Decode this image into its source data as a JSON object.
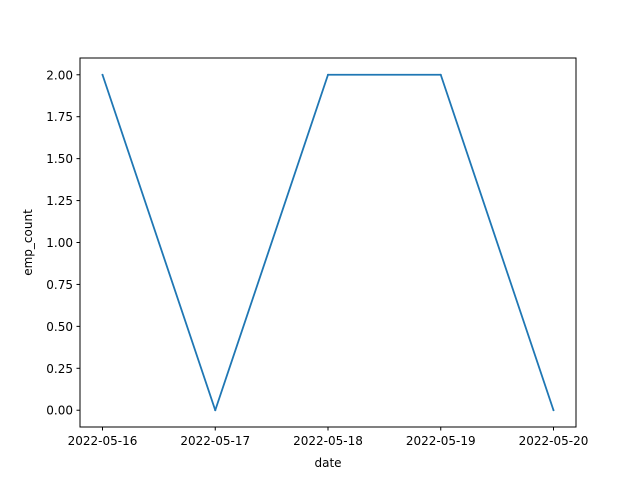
{
  "chart_data": {
    "type": "line",
    "title": "",
    "xlabel": "date",
    "ylabel": "emp_count",
    "x": [
      "2022-05-16",
      "2022-05-17",
      "2022-05-18",
      "2022-05-19",
      "2022-05-20"
    ],
    "series": [
      {
        "values": [
          2.0,
          0.0,
          2.0,
          2.0,
          0.0
        ],
        "color": "#1f77b4"
      }
    ],
    "xticks": [
      "2022-05-16",
      "2022-05-17",
      "2022-05-18",
      "2022-05-19",
      "2022-05-20"
    ],
    "yticks": [
      "0.00",
      "0.25",
      "0.50",
      "0.75",
      "1.00",
      "1.25",
      "1.50",
      "1.75",
      "2.00"
    ],
    "ylim": [
      -0.1,
      2.1
    ],
    "grid": false,
    "legend": "none"
  }
}
